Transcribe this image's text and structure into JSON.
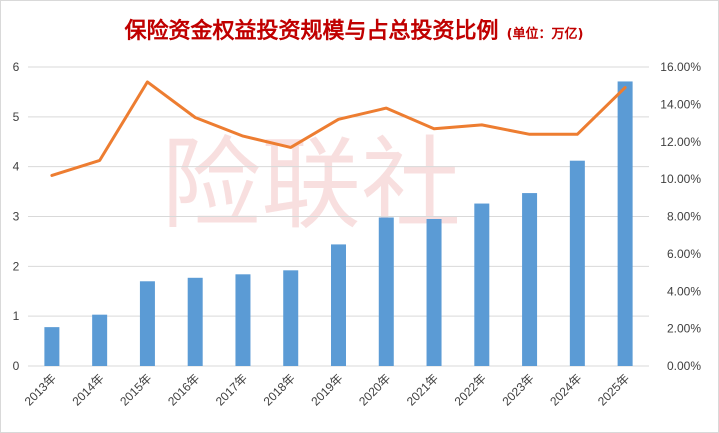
{
  "chart_data": {
    "type": "bar+line",
    "title": "保险资金权益投资规模与占总投资比例",
    "subtitle": "(单位：万亿)",
    "watermark": "险联社",
    "categories": [
      "2013年",
      "2014年",
      "2015年",
      "2016年",
      "2017年",
      "2018年",
      "2019年",
      "2020年",
      "2021年",
      "2022年",
      "2023年",
      "2024年",
      "2025年"
    ],
    "series": [
      {
        "type": "bar",
        "axis": "left",
        "values": [
          0.78,
          1.03,
          1.7,
          1.77,
          1.84,
          1.92,
          2.44,
          2.98,
          2.95,
          3.26,
          3.47,
          4.12,
          5.71
        ]
      },
      {
        "type": "line",
        "axis": "right",
        "values": [
          10.2,
          11.0,
          15.2,
          13.3,
          12.3,
          11.7,
          13.2,
          13.8,
          12.7,
          12.9,
          12.4,
          12.4,
          14.9
        ]
      }
    ],
    "y_left": {
      "min": 0,
      "max": 6,
      "ticks": [
        "0",
        "1",
        "2",
        "3",
        "4",
        "5",
        "6"
      ]
    },
    "y_right": {
      "min": 0,
      "max": 16,
      "ticks": [
        "0.00%",
        "2.00%",
        "4.00%",
        "6.00%",
        "8.00%",
        "10.00%",
        "12.00%",
        "14.00%",
        "16.00%"
      ]
    },
    "grid": true,
    "colors": {
      "bar": "#5b9bd5",
      "line": "#ed7d31",
      "title": "#c00000",
      "grid": "#d9d9d9",
      "watermark": "#f3c6c6"
    }
  }
}
